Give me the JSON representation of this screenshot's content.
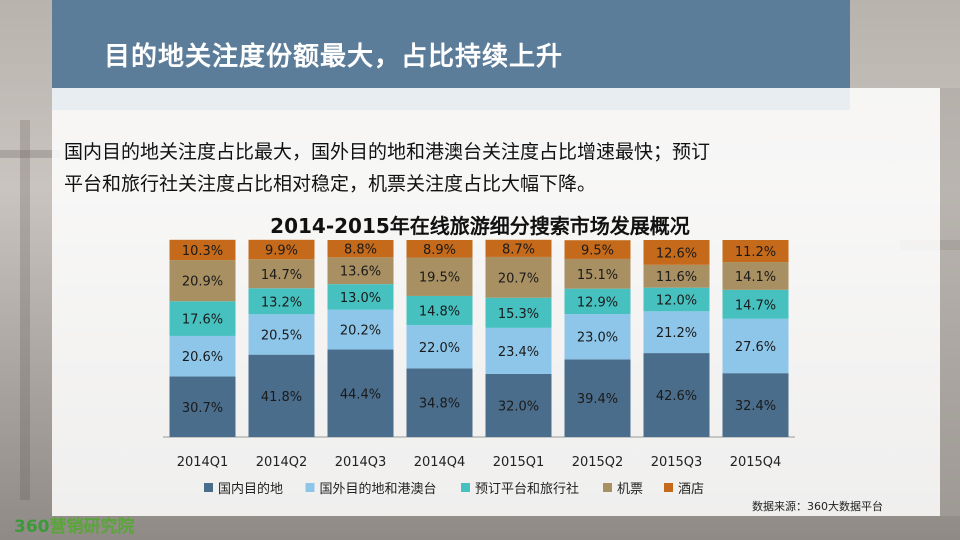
{
  "header": {
    "title": "目的地关注度份额最大，占比持续上升"
  },
  "description": {
    "line1": "国内目的地关注度占比最大，国外目的地和港澳台关注度占比增速最快；预订",
    "line2": "平台和旅行社关注度占比相对稳定，机票关注度占比大幅下降。"
  },
  "source": "数据来源：360大数据平台",
  "logo": {
    "number": "360",
    "text": "营销研究院"
  },
  "colors": {
    "domestic": "#4a6d8c",
    "overseas": "#8ec6ea",
    "booking": "#46c1c0",
    "ticket": "#a89062",
    "hotel": "#c46a1a"
  },
  "chart_data": {
    "type": "bar",
    "stacked": true,
    "title": "2014-2015年在线旅游细分搜索市场发展概况",
    "categories": [
      "2014Q1",
      "2014Q2",
      "2014Q3",
      "2014Q4",
      "2015Q1",
      "2015Q2",
      "2015Q3",
      "2015Q4"
    ],
    "ylim": [
      0,
      100
    ],
    "legend_position": "bottom",
    "series": [
      {
        "name": "国内目的地",
        "color": "#4a6d8c",
        "labels": [
          "30.7%",
          "41.8%",
          "44.4%",
          "34.8%",
          "32.0%",
          "39.4%",
          "42.6%",
          "32.4%"
        ],
        "values": [
          30.7,
          41.8,
          44.4,
          34.8,
          32.0,
          39.4,
          42.6,
          32.4
        ]
      },
      {
        "name": "国外目的地和港澳台",
        "color": "#8ec6ea",
        "labels": [
          "20.6%",
          "20.5%",
          "20.2%",
          "22.0%",
          "23.4%",
          "23.0%",
          "21.2%",
          "27.6%"
        ],
        "values": [
          20.6,
          20.5,
          20.2,
          22.0,
          23.4,
          23.0,
          21.2,
          27.6
        ]
      },
      {
        "name": "预订平台和旅行社",
        "color": "#46c1c0",
        "labels": [
          "17.6%",
          "13.2%",
          "13.0%",
          "14.8%",
          "15.3%",
          "12.9%",
          "12.0%",
          "14.7%"
        ],
        "values": [
          17.6,
          13.2,
          13.0,
          14.8,
          15.3,
          12.9,
          12.0,
          14.7
        ]
      },
      {
        "name": "机票",
        "color": "#a89062",
        "labels": [
          "20.9%",
          "14.7%",
          "13.6%",
          "19.5%",
          "20.7%",
          "15.1%",
          "11.6%",
          "14.1%"
        ],
        "values": [
          20.9,
          14.7,
          13.6,
          19.5,
          20.7,
          15.1,
          11.6,
          14.1
        ]
      },
      {
        "name": "酒店",
        "color": "#c46a1a",
        "labels": [
          "10.3%",
          "9.9%",
          "8.8%",
          "8.9%",
          "8.7%",
          "9.5%",
          "12.6%",
          "11.2%"
        ],
        "values": [
          10.3,
          9.9,
          8.8,
          8.9,
          8.7,
          9.5,
          12.6,
          11.2
        ]
      }
    ]
  }
}
